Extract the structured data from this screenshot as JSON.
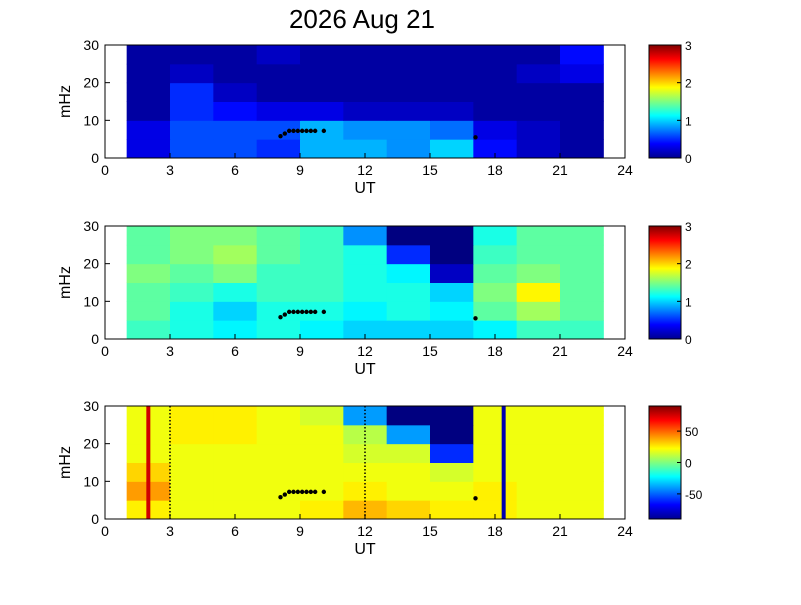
{
  "chart_data": [
    {
      "type": "heatmap",
      "title": "2026 Aug 21",
      "xlabel": "UT",
      "ylabel": "mHz",
      "xlim": [
        0,
        24
      ],
      "xticks": [
        0,
        3,
        6,
        9,
        12,
        15,
        18,
        21,
        24
      ],
      "ylim": [
        0,
        30
      ],
      "yticks": [
        0,
        10,
        20,
        30
      ],
      "xbins": [
        1,
        3,
        5,
        7,
        9,
        11,
        13,
        15,
        17,
        19,
        21,
        23
      ],
      "ybins": [
        0,
        5,
        10,
        15,
        20,
        25,
        30
      ],
      "z": [
        [
          0.3,
          0.6,
          0.6,
          0.5,
          0.9,
          0.9,
          0.8,
          1.0,
          0.4,
          0.2,
          0.1
        ],
        [
          0.3,
          0.6,
          0.6,
          0.6,
          0.9,
          0.8,
          0.8,
          0.7,
          0.3,
          0.2,
          0.1
        ],
        [
          0.1,
          0.5,
          0.4,
          0.3,
          0.3,
          0.2,
          0.2,
          0.2,
          0.1,
          0.1,
          0.1
        ],
        [
          0.1,
          0.5,
          0.2,
          0.1,
          0.1,
          0.1,
          0.1,
          0.1,
          0.1,
          0.1,
          0.1
        ],
        [
          0.1,
          0.2,
          0.1,
          0.1,
          0.1,
          0.1,
          0.1,
          0.1,
          0.1,
          0.2,
          0.3
        ],
        [
          0.1,
          0.1,
          0.1,
          0.2,
          0.1,
          0.1,
          0.1,
          0.1,
          0.1,
          0.1,
          0.4
        ]
      ],
      "clim": [
        0,
        3
      ],
      "cticks": [
        0,
        1,
        2,
        3
      ],
      "colormap": "jet",
      "markers": {
        "x": [
          8.1,
          8.3,
          8.5,
          8.7,
          8.9,
          9.1,
          9.3,
          9.5,
          9.7,
          10.1,
          17.1
        ],
        "y": [
          5.8,
          6.5,
          7.2,
          7.2,
          7.2,
          7.2,
          7.2,
          7.2,
          7.2,
          7.2,
          5.5
        ],
        "color": "#000000"
      }
    },
    {
      "type": "heatmap",
      "xlabel": "UT",
      "ylabel": "mHz",
      "xlim": [
        0,
        24
      ],
      "xticks": [
        0,
        3,
        6,
        9,
        12,
        15,
        18,
        21,
        24
      ],
      "ylim": [
        0,
        30
      ],
      "yticks": [
        0,
        10,
        20,
        30
      ],
      "xbins": [
        1,
        3,
        5,
        7,
        9,
        11,
        13,
        15,
        17,
        19,
        21,
        23
      ],
      "ybins": [
        0,
        5,
        10,
        15,
        20,
        25,
        30
      ],
      "z": [
        [
          1.3,
          1.2,
          1.1,
          1.2,
          1.1,
          1.0,
          1.0,
          1.0,
          1.1,
          1.3,
          1.3
        ],
        [
          1.4,
          1.2,
          1.0,
          1.2,
          1.2,
          1.1,
          1.2,
          1.1,
          1.4,
          1.6,
          1.4
        ],
        [
          1.4,
          1.3,
          1.2,
          1.3,
          1.3,
          1.2,
          1.2,
          1.0,
          1.5,
          1.9,
          1.4
        ],
        [
          1.5,
          1.4,
          1.5,
          1.3,
          1.3,
          1.2,
          1.1,
          0.2,
          1.4,
          1.5,
          1.4
        ],
        [
          1.4,
          1.5,
          1.6,
          1.4,
          1.3,
          1.2,
          0.5,
          0.0,
          1.3,
          1.4,
          1.4
        ],
        [
          1.4,
          1.5,
          1.5,
          1.4,
          1.3,
          0.8,
          0.0,
          0.0,
          1.2,
          1.4,
          1.4
        ]
      ],
      "clim": [
        0,
        3
      ],
      "cticks": [
        0,
        1,
        2,
        3
      ],
      "colormap": "jet",
      "markers": {
        "x": [
          8.1,
          8.3,
          8.5,
          8.7,
          8.9,
          9.1,
          9.3,
          9.5,
          9.7,
          10.1,
          17.1
        ],
        "y": [
          5.8,
          6.5,
          7.2,
          7.2,
          7.2,
          7.2,
          7.2,
          7.2,
          7.2,
          7.2,
          5.5
        ],
        "color": "#000000"
      }
    },
    {
      "type": "heatmap",
      "xlabel": "UT",
      "ylabel": "mHz",
      "xlim": [
        0,
        24
      ],
      "xticks": [
        0,
        3,
        6,
        9,
        12,
        15,
        18,
        21,
        24
      ],
      "ylim": [
        0,
        30
      ],
      "yticks": [
        0,
        10,
        20,
        30
      ],
      "xbins": [
        1,
        3,
        5,
        7,
        9,
        11,
        13,
        15,
        17,
        19,
        21,
        23
      ],
      "ybins": [
        0,
        5,
        10,
        15,
        20,
        25,
        30
      ],
      "z": [
        [
          25,
          20,
          20,
          20,
          25,
          35,
          30,
          25,
          25,
          20,
          20
        ],
        [
          40,
          20,
          20,
          20,
          20,
          25,
          20,
          20,
          25,
          20,
          20
        ],
        [
          30,
          20,
          20,
          20,
          20,
          20,
          20,
          15,
          20,
          20,
          20
        ],
        [
          20,
          20,
          20,
          20,
          20,
          15,
          15,
          -60,
          20,
          20,
          20
        ],
        [
          20,
          25,
          25,
          20,
          20,
          10,
          -40,
          -90,
          20,
          20,
          20
        ],
        [
          20,
          25,
          25,
          20,
          15,
          -40,
          -90,
          -90,
          20,
          20,
          20
        ]
      ],
      "clim": [
        -90,
        90
      ],
      "cticks": [
        -50,
        0,
        50
      ],
      "colormap": "jet",
      "markers": {
        "x": [
          8.1,
          8.3,
          8.5,
          8.7,
          8.9,
          9.1,
          9.3,
          9.5,
          9.7,
          10.1,
          17.1
        ],
        "y": [
          5.8,
          6.5,
          7.2,
          7.2,
          7.2,
          7.2,
          7.2,
          7.2,
          7.2,
          7.2,
          5.5
        ],
        "color": "#000000"
      },
      "vlines": [
        {
          "x": 2,
          "color": "#d00000",
          "dash": false
        },
        {
          "x": 3,
          "color": "#000000",
          "dash": true
        },
        {
          "x": 12,
          "color": "#000000",
          "dash": true
        },
        {
          "x": 18.4,
          "color": "#0000b0",
          "dash": false
        }
      ]
    }
  ]
}
